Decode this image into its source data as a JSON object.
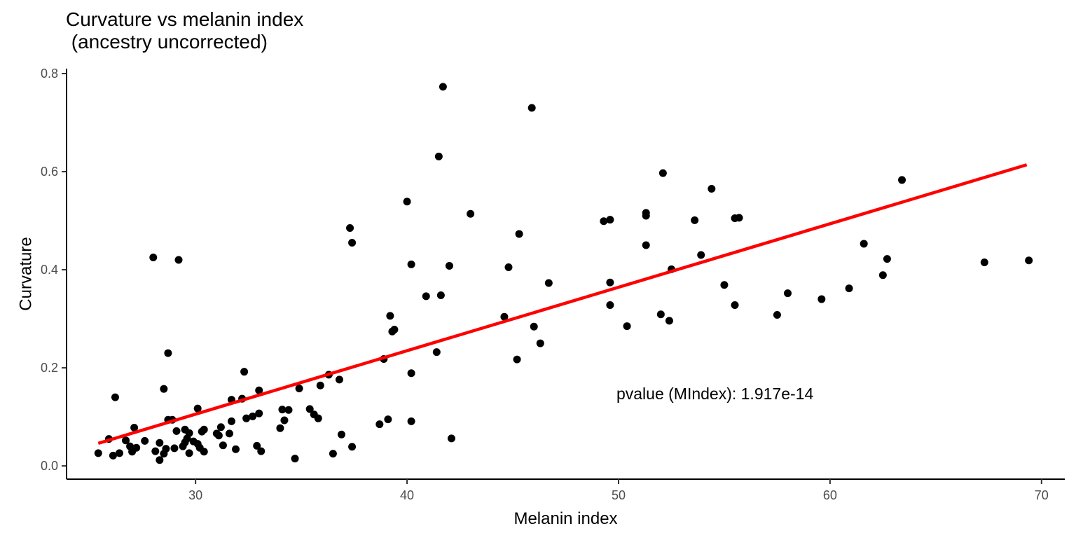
{
  "chart_data": {
    "type": "scatter",
    "title_line1": "Curvature vs melanin index",
    "title_line2": " (ancestry uncorrected)",
    "xlabel": "Melanin index",
    "ylabel": "Curvature",
    "xlim": [
      23.9,
      71.1
    ],
    "ylim": [
      -0.027,
      0.81
    ],
    "x_ticks": [
      30,
      40,
      50,
      60,
      70
    ],
    "y_ticks": [
      0.0,
      0.2,
      0.4,
      0.6,
      0.8
    ],
    "x_tick_labels": [
      "30",
      "40",
      "50",
      "60",
      "70"
    ],
    "y_tick_labels": [
      "0.0",
      "0.2",
      "0.4",
      "0.6",
      "0.8"
    ],
    "annotation": {
      "text": "pvalue (MIndex): 1.917e-14",
      "x": 49.9,
      "y": 0.147
    },
    "point_color": "#000000",
    "fit_color": "#ff0000",
    "fit_line": {
      "x": [
        25.4,
        69.3
      ],
      "y": [
        0.046,
        0.614
      ]
    },
    "points": [
      {
        "x": 25.4,
        "y": 0.026
      },
      {
        "x": 25.9,
        "y": 0.055
      },
      {
        "x": 26.1,
        "y": 0.021
      },
      {
        "x": 26.2,
        "y": 0.14
      },
      {
        "x": 26.4,
        "y": 0.026
      },
      {
        "x": 26.7,
        "y": 0.052
      },
      {
        "x": 26.9,
        "y": 0.04
      },
      {
        "x": 27.0,
        "y": 0.029
      },
      {
        "x": 27.1,
        "y": 0.078
      },
      {
        "x": 27.2,
        "y": 0.037
      },
      {
        "x": 27.6,
        "y": 0.051
      },
      {
        "x": 28.0,
        "y": 0.425
      },
      {
        "x": 28.1,
        "y": 0.03
      },
      {
        "x": 28.3,
        "y": 0.047
      },
      {
        "x": 28.3,
        "y": 0.012
      },
      {
        "x": 28.5,
        "y": 0.025
      },
      {
        "x": 28.6,
        "y": 0.035
      },
      {
        "x": 28.5,
        "y": 0.157
      },
      {
        "x": 28.7,
        "y": 0.094
      },
      {
        "x": 28.7,
        "y": 0.23
      },
      {
        "x": 28.9,
        "y": 0.094
      },
      {
        "x": 29.0,
        "y": 0.036
      },
      {
        "x": 29.1,
        "y": 0.071
      },
      {
        "x": 29.2,
        "y": 0.42
      },
      {
        "x": 29.4,
        "y": 0.04
      },
      {
        "x": 29.5,
        "y": 0.074
      },
      {
        "x": 29.5,
        "y": 0.048
      },
      {
        "x": 29.6,
        "y": 0.056
      },
      {
        "x": 29.7,
        "y": 0.067
      },
      {
        "x": 29.7,
        "y": 0.026
      },
      {
        "x": 29.9,
        "y": 0.05
      },
      {
        "x": 30.1,
        "y": 0.117
      },
      {
        "x": 30.1,
        "y": 0.045
      },
      {
        "x": 30.2,
        "y": 0.037
      },
      {
        "x": 30.3,
        "y": 0.07
      },
      {
        "x": 30.4,
        "y": 0.074
      },
      {
        "x": 30.4,
        "y": 0.029
      },
      {
        "x": 31.0,
        "y": 0.066
      },
      {
        "x": 31.1,
        "y": 0.062
      },
      {
        "x": 31.2,
        "y": 0.079
      },
      {
        "x": 31.3,
        "y": 0.042
      },
      {
        "x": 31.6,
        "y": 0.066
      },
      {
        "x": 31.7,
        "y": 0.091
      },
      {
        "x": 31.7,
        "y": 0.135
      },
      {
        "x": 31.9,
        "y": 0.034
      },
      {
        "x": 32.2,
        "y": 0.137
      },
      {
        "x": 32.3,
        "y": 0.192
      },
      {
        "x": 32.4,
        "y": 0.097
      },
      {
        "x": 32.7,
        "y": 0.101
      },
      {
        "x": 32.9,
        "y": 0.041
      },
      {
        "x": 33.0,
        "y": 0.107
      },
      {
        "x": 33.0,
        "y": 0.154
      },
      {
        "x": 33.1,
        "y": 0.03
      },
      {
        "x": 34.0,
        "y": 0.077
      },
      {
        "x": 34.1,
        "y": 0.115
      },
      {
        "x": 34.2,
        "y": 0.093
      },
      {
        "x": 34.4,
        "y": 0.114
      },
      {
        "x": 34.7,
        "y": 0.015
      },
      {
        "x": 34.9,
        "y": 0.158
      },
      {
        "x": 35.4,
        "y": 0.116
      },
      {
        "x": 35.6,
        "y": 0.105
      },
      {
        "x": 35.8,
        "y": 0.097
      },
      {
        "x": 35.9,
        "y": 0.164
      },
      {
        "x": 36.3,
        "y": 0.186
      },
      {
        "x": 36.5,
        "y": 0.025
      },
      {
        "x": 36.8,
        "y": 0.176
      },
      {
        "x": 36.9,
        "y": 0.064
      },
      {
        "x": 37.3,
        "y": 0.485
      },
      {
        "x": 37.4,
        "y": 0.039
      },
      {
        "x": 37.4,
        "y": 0.455
      },
      {
        "x": 38.7,
        "y": 0.085
      },
      {
        "x": 38.9,
        "y": 0.218
      },
      {
        "x": 39.1,
        "y": 0.095
      },
      {
        "x": 39.2,
        "y": 0.306
      },
      {
        "x": 39.3,
        "y": 0.274
      },
      {
        "x": 39.4,
        "y": 0.278
      },
      {
        "x": 40.0,
        "y": 0.539
      },
      {
        "x": 40.2,
        "y": 0.411
      },
      {
        "x": 40.2,
        "y": 0.189
      },
      {
        "x": 40.2,
        "y": 0.091
      },
      {
        "x": 40.9,
        "y": 0.346
      },
      {
        "x": 41.4,
        "y": 0.232
      },
      {
        "x": 41.5,
        "y": 0.631
      },
      {
        "x": 41.6,
        "y": 0.348
      },
      {
        "x": 41.7,
        "y": 0.773
      },
      {
        "x": 42.0,
        "y": 0.408
      },
      {
        "x": 42.1,
        "y": 0.056
      },
      {
        "x": 43.0,
        "y": 0.514
      },
      {
        "x": 44.6,
        "y": 0.304
      },
      {
        "x": 44.8,
        "y": 0.405
      },
      {
        "x": 45.9,
        "y": 0.73
      },
      {
        "x": 46.0,
        "y": 0.284
      },
      {
        "x": 45.2,
        "y": 0.217
      },
      {
        "x": 45.3,
        "y": 0.473
      },
      {
        "x": 46.3,
        "y": 0.25
      },
      {
        "x": 46.7,
        "y": 0.373
      },
      {
        "x": 49.3,
        "y": 0.499
      },
      {
        "x": 49.6,
        "y": 0.502
      },
      {
        "x": 49.6,
        "y": 0.374
      },
      {
        "x": 49.6,
        "y": 0.328
      },
      {
        "x": 50.4,
        "y": 0.285
      },
      {
        "x": 51.3,
        "y": 0.51
      },
      {
        "x": 51.3,
        "y": 0.516
      },
      {
        "x": 51.3,
        "y": 0.45
      },
      {
        "x": 52.0,
        "y": 0.309
      },
      {
        "x": 52.1,
        "y": 0.597
      },
      {
        "x": 52.4,
        "y": 0.296
      },
      {
        "x": 52.5,
        "y": 0.401
      },
      {
        "x": 53.6,
        "y": 0.501
      },
      {
        "x": 53.9,
        "y": 0.43
      },
      {
        "x": 54.4,
        "y": 0.565
      },
      {
        "x": 55.0,
        "y": 0.369
      },
      {
        "x": 55.5,
        "y": 0.328
      },
      {
        "x": 55.5,
        "y": 0.505
      },
      {
        "x": 55.7,
        "y": 0.506
      },
      {
        "x": 57.5,
        "y": 0.308
      },
      {
        "x": 58.0,
        "y": 0.352
      },
      {
        "x": 59.6,
        "y": 0.34
      },
      {
        "x": 60.9,
        "y": 0.362
      },
      {
        "x": 61.6,
        "y": 0.453
      },
      {
        "x": 62.5,
        "y": 0.389
      },
      {
        "x": 62.7,
        "y": 0.422
      },
      {
        "x": 63.4,
        "y": 0.583
      },
      {
        "x": 67.3,
        "y": 0.415
      },
      {
        "x": 69.4,
        "y": 0.419
      }
    ]
  }
}
